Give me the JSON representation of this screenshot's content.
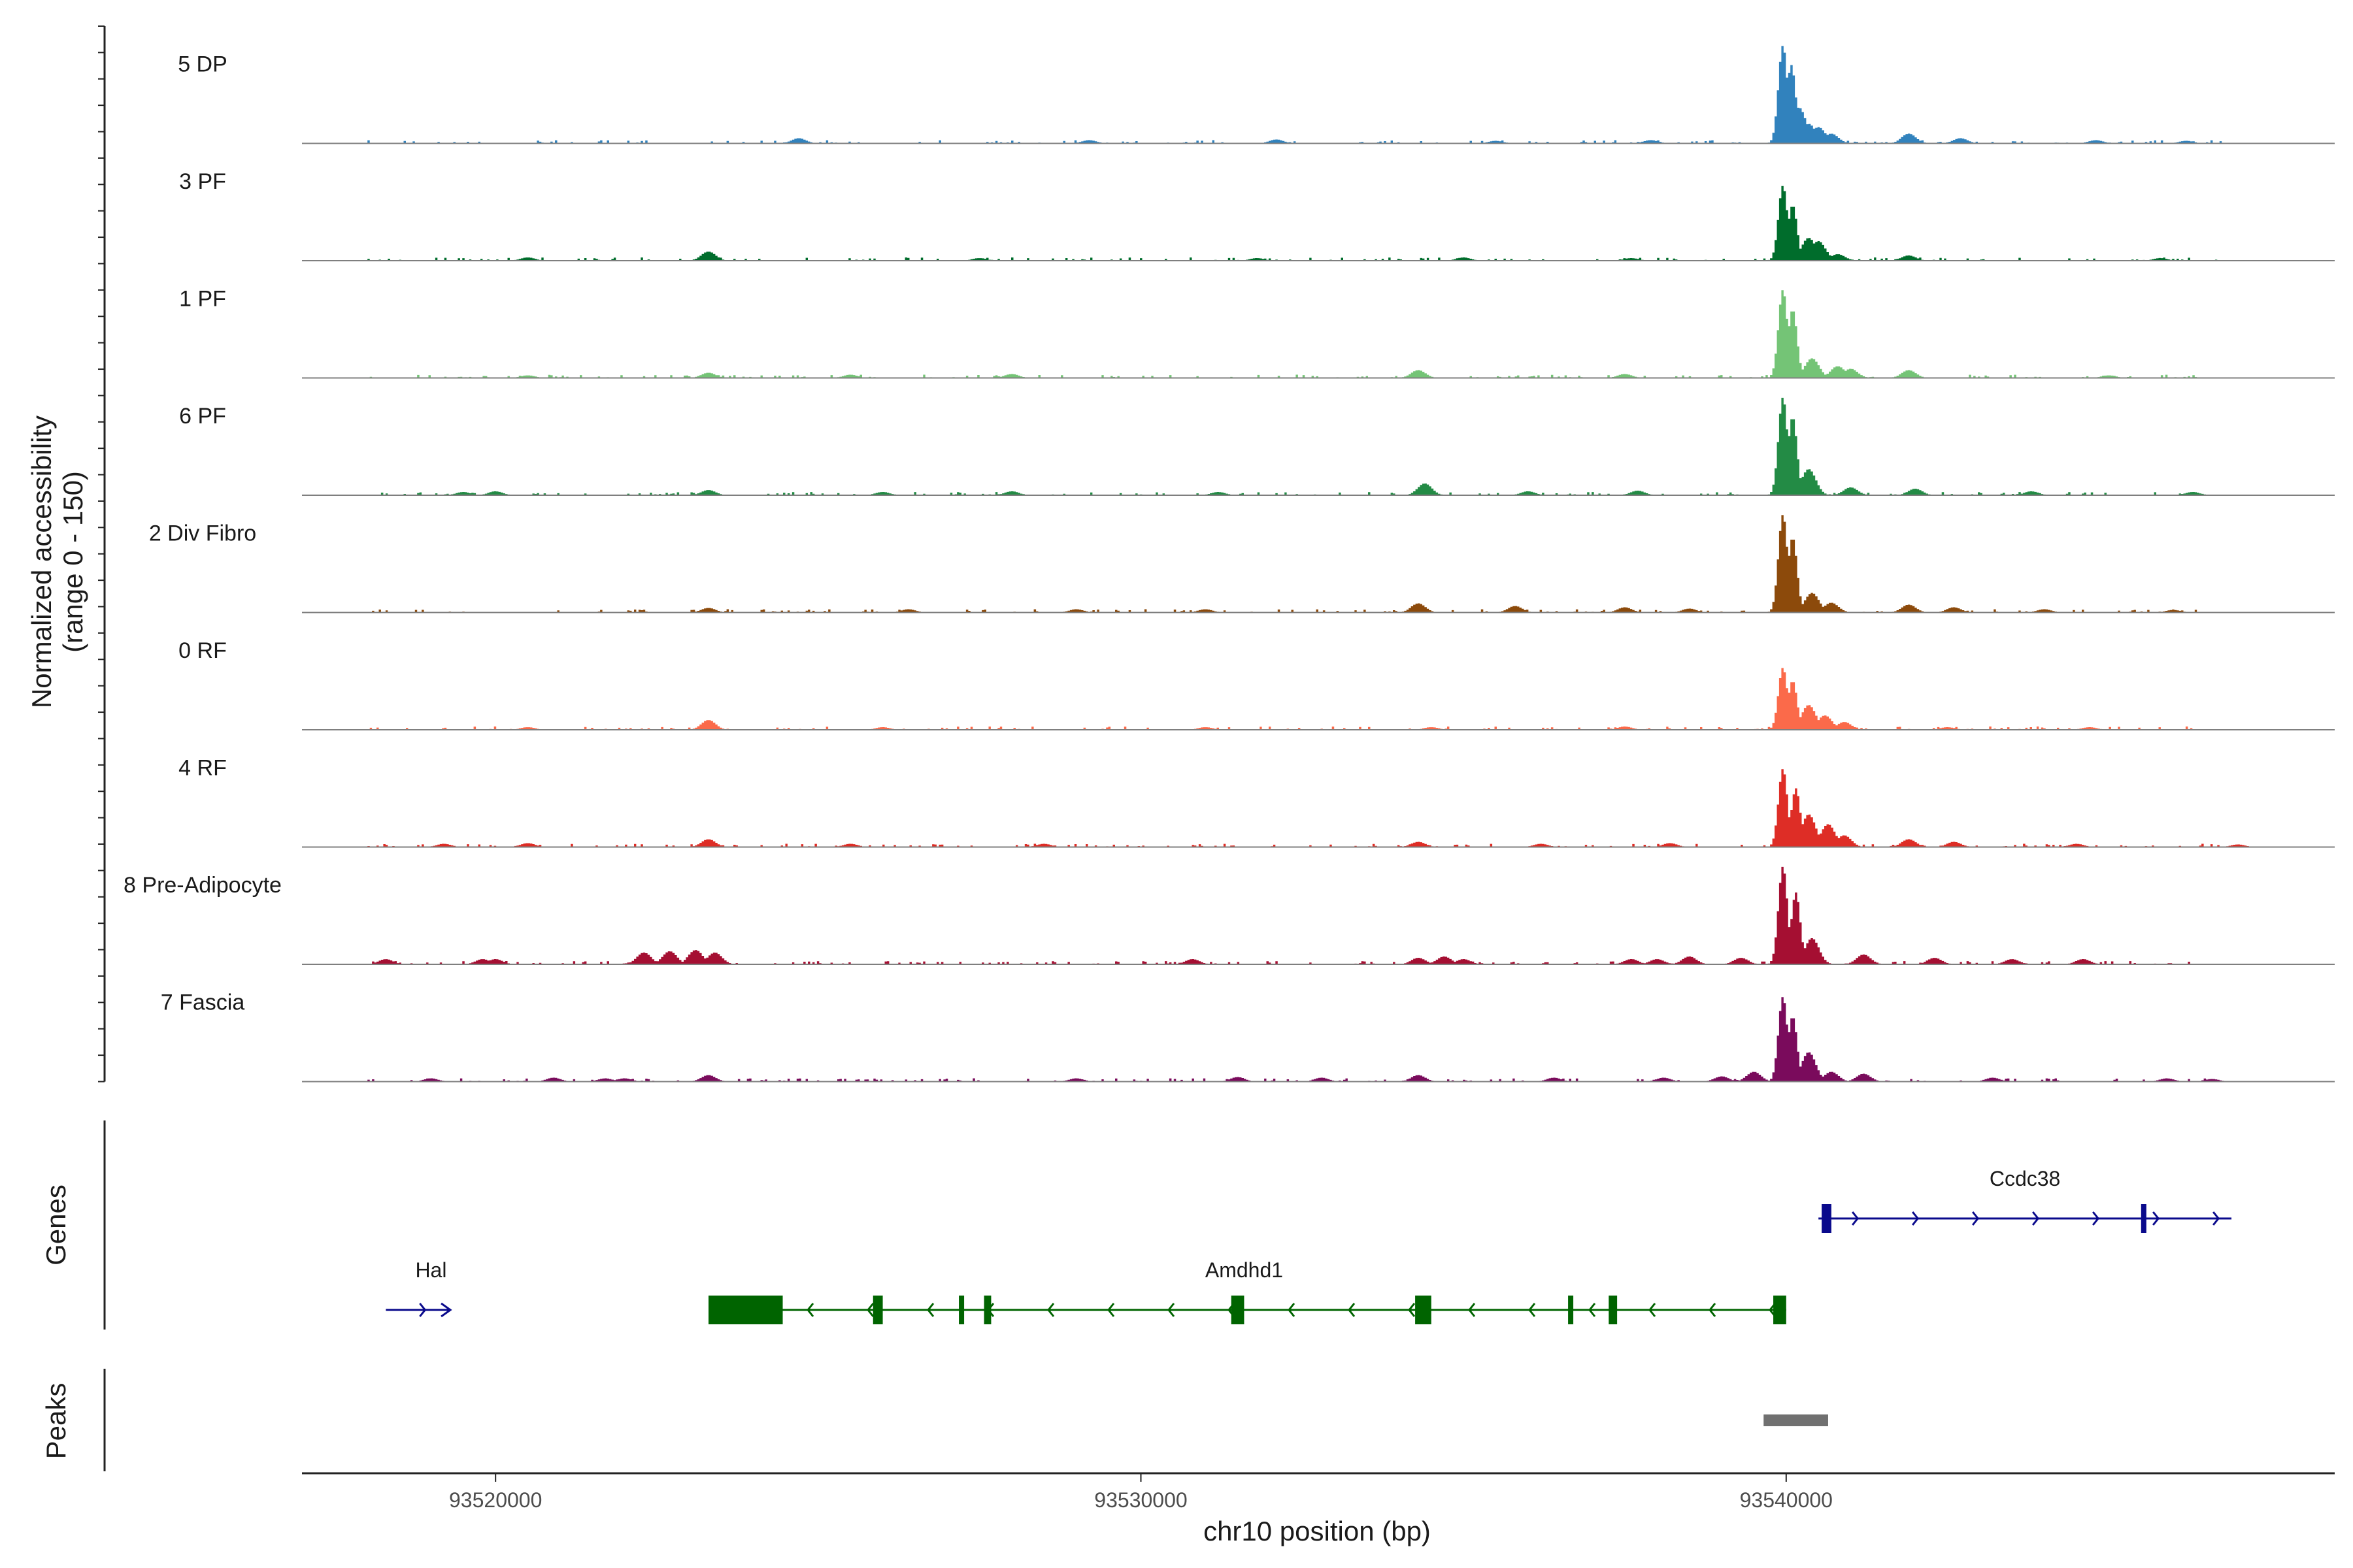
{
  "chart_data": {
    "type": "area",
    "region": {
      "chrom": "chr10",
      "start": 93517000,
      "end": 93548500
    },
    "x_ticks": [
      93520000,
      93530000,
      93540000
    ],
    "x_tick_labels": [
      "93520000",
      "93530000",
      "93540000"
    ],
    "xlabel": "chr10 position (bp)",
    "ylabel": "Normalized accessibility",
    "ylabel_sub": "(range 0 - 150)",
    "ylim": [
      0,
      150
    ],
    "tracks": [
      {
        "name": "5 DP",
        "color": "#3182bd",
        "peaks": [
          [
            93539950,
            150
          ],
          [
            93540080,
            120
          ],
          [
            93540200,
            55
          ],
          [
            93540350,
            30
          ],
          [
            93540500,
            25
          ],
          [
            93540700,
            15
          ],
          [
            93541900,
            15
          ],
          [
            93542700,
            8
          ],
          [
            93524700,
            8
          ],
          [
            93532100,
            6
          ],
          [
            93529200,
            5
          ],
          [
            93535500,
            4
          ],
          [
            93537900,
            5
          ],
          [
            93544800,
            5
          ],
          [
            93546200,
            4
          ]
        ]
      },
      {
        "name": "3 PF",
        "color": "#006d2c",
        "peaks": [
          [
            93539950,
            115
          ],
          [
            93540100,
            85
          ],
          [
            93540350,
            35
          ],
          [
            93540500,
            30
          ],
          [
            93540800,
            10
          ],
          [
            93541900,
            8
          ],
          [
            93523300,
            14
          ],
          [
            93520500,
            5
          ],
          [
            93527500,
            4
          ],
          [
            93531800,
            4
          ],
          [
            93535000,
            5
          ],
          [
            93537600,
            4
          ],
          [
            93545800,
            4
          ]
        ]
      },
      {
        "name": "1 PF",
        "color": "#74c476",
        "peaks": [
          [
            93539950,
            135
          ],
          [
            93540100,
            105
          ],
          [
            93540400,
            30
          ],
          [
            93540800,
            18
          ],
          [
            93541000,
            14
          ],
          [
            93541900,
            12
          ],
          [
            93523300,
            8
          ],
          [
            93525500,
            5
          ],
          [
            93528000,
            6
          ],
          [
            93534300,
            12
          ],
          [
            93537500,
            6
          ],
          [
            93520500,
            4
          ],
          [
            93545000,
            4
          ]
        ]
      },
      {
        "name": "6 PF",
        "color": "#238b45",
        "peaks": [
          [
            93539950,
            150
          ],
          [
            93540100,
            120
          ],
          [
            93540350,
            40
          ],
          [
            93541000,
            12
          ],
          [
            93542000,
            10
          ],
          [
            93534400,
            18
          ],
          [
            93523300,
            8
          ],
          [
            93528000,
            6
          ],
          [
            93531200,
            5
          ],
          [
            93520000,
            6
          ],
          [
            93519500,
            5
          ],
          [
            93526000,
            5
          ],
          [
            93536000,
            6
          ],
          [
            93537700,
            7
          ],
          [
            93543800,
            6
          ],
          [
            93546300,
            5
          ]
        ]
      },
      {
        "name": "2 Div Fibro",
        "color": "#8c4a0b",
        "peaks": [
          [
            93539950,
            150
          ],
          [
            93540100,
            115
          ],
          [
            93540400,
            30
          ],
          [
            93540700,
            15
          ],
          [
            93541900,
            12
          ],
          [
            93542600,
            8
          ],
          [
            93534300,
            14
          ],
          [
            93535800,
            10
          ],
          [
            93537500,
            8
          ],
          [
            93538500,
            6
          ],
          [
            93523300,
            7
          ],
          [
            93526400,
            5
          ],
          [
            93529000,
            5
          ],
          [
            93531000,
            5
          ],
          [
            93544000,
            5
          ],
          [
            93546000,
            4
          ]
        ]
      },
      {
        "name": "0 RF",
        "color": "#fb6a4a",
        "peaks": [
          [
            93539950,
            95
          ],
          [
            93540100,
            75
          ],
          [
            93540350,
            38
          ],
          [
            93540600,
            22
          ],
          [
            93540900,
            12
          ],
          [
            93523300,
            15
          ],
          [
            93520500,
            4
          ],
          [
            93526000,
            4
          ],
          [
            93531000,
            4
          ],
          [
            93534500,
            4
          ],
          [
            93537500,
            5
          ],
          [
            93542500,
            4
          ],
          [
            93544700,
            4
          ]
        ]
      },
      {
        "name": "4 RF",
        "color": "#de2d26",
        "peaks": [
          [
            93539950,
            120
          ],
          [
            93540150,
            90
          ],
          [
            93540350,
            50
          ],
          [
            93540650,
            35
          ],
          [
            93540900,
            18
          ],
          [
            93541900,
            12
          ],
          [
            93542600,
            8
          ],
          [
            93523300,
            12
          ],
          [
            93519200,
            5
          ],
          [
            93520500,
            6
          ],
          [
            93525500,
            5
          ],
          [
            93528500,
            5
          ],
          [
            93534300,
            8
          ],
          [
            93536200,
            5
          ],
          [
            93538200,
            6
          ],
          [
            93544500,
            5
          ],
          [
            93547000,
            4
          ]
        ]
      },
      {
        "name": "8 Pre-Adipocyte",
        "color": "#a50f32",
        "peaks": [
          [
            93539950,
            150
          ],
          [
            93540150,
            110
          ],
          [
            93540400,
            40
          ],
          [
            93541200,
            15
          ],
          [
            93538500,
            12
          ],
          [
            93539300,
            10
          ],
          [
            93522300,
            18
          ],
          [
            93522700,
            20
          ],
          [
            93523100,
            22
          ],
          [
            93523400,
            18
          ],
          [
            93518300,
            8
          ],
          [
            93519800,
            8
          ],
          [
            93520000,
            8
          ],
          [
            93530800,
            8
          ],
          [
            93534300,
            10
          ],
          [
            93534700,
            12
          ],
          [
            93535000,
            8
          ],
          [
            93537600,
            8
          ],
          [
            93538000,
            8
          ],
          [
            93542300,
            10
          ],
          [
            93543500,
            8
          ],
          [
            93544600,
            8
          ]
        ]
      },
      {
        "name": "7 Fascia",
        "color": "#7a0b5c",
        "peaks": [
          [
            93539950,
            130
          ],
          [
            93540100,
            100
          ],
          [
            93540350,
            45
          ],
          [
            93540700,
            15
          ],
          [
            93541200,
            12
          ],
          [
            93539500,
            15
          ],
          [
            93539000,
            8
          ],
          [
            93523300,
            10
          ],
          [
            93519000,
            5
          ],
          [
            93520900,
            6
          ],
          [
            93521700,
            5
          ],
          [
            93522000,
            5
          ],
          [
            93529000,
            5
          ],
          [
            93531500,
            7
          ],
          [
            93532800,
            6
          ],
          [
            93534300,
            10
          ],
          [
            93536400,
            6
          ],
          [
            93538100,
            6
          ],
          [
            93543200,
            6
          ],
          [
            93545900,
            5
          ],
          [
            93546600,
            4
          ]
        ]
      }
    ],
    "genes_label": "Genes",
    "genes": [
      {
        "name": "Hal",
        "strand": "+",
        "color": "#0a0a8c",
        "row": 1,
        "start": 93518300,
        "end": 93519300,
        "exons": [],
        "label_pos": 93519000
      },
      {
        "name": "Amdhd1",
        "strand": "-",
        "color": "#006400",
        "row": 1,
        "start": 93523300,
        "end": 93540000,
        "label_pos": 93531600,
        "exons": [
          [
            93523300,
            93524450
          ],
          [
            93525850,
            93526000
          ],
          [
            93527180,
            93527250
          ],
          [
            93527570,
            93527680
          ],
          [
            93531400,
            93531600
          ],
          [
            93534250,
            93534500
          ],
          [
            93536620,
            93536680
          ],
          [
            93537250,
            93537380
          ],
          [
            93539800,
            93540000
          ]
        ]
      },
      {
        "name": "Ccdc38",
        "strand": "+",
        "color": "#0a0a8c",
        "row": 0,
        "start": 93540500,
        "end": 93546900,
        "label_pos": 93543700,
        "exons": [
          [
            93540550,
            93540700
          ],
          [
            93545500,
            93545560
          ]
        ]
      }
    ],
    "peaks_label": "Peaks",
    "peak_regions": [
      [
        93539650,
        93540650
      ]
    ]
  }
}
